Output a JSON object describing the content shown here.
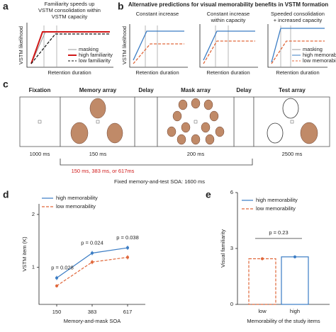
{
  "panel_a": {
    "label": "a",
    "title": [
      "Familiarity speeds up",
      "VSTM consolidation within",
      "VSTM capacity"
    ],
    "ylabel": "VSTM likelihood",
    "xlabel": "Retention duration",
    "legend": [
      "masking",
      "high familiarity",
      "low familiarity"
    ]
  },
  "panel_b": {
    "label": "b",
    "title": "Alternative predictions for visual memorability benefits in VSTM formation",
    "subplots": [
      {
        "title": [
          "Constant increase"
        ]
      },
      {
        "title": [
          "Constant increase",
          "within capacity"
        ]
      },
      {
        "title": [
          "Speeded consolidation",
          "+ increased capacity"
        ]
      }
    ],
    "ylabel": "VSTM likelihood",
    "xlabel": "Retention duration",
    "legend": [
      "masking",
      "high memorability",
      "low memorability"
    ]
  },
  "panel_c": {
    "label": "c",
    "stages": [
      "Fixation",
      "Memory array",
      "Delay",
      "Mask array",
      "Delay",
      "Test array"
    ],
    "durations": [
      "1000 ms",
      "150 ms",
      "200 ms",
      "2500 ms"
    ],
    "soa": "150 ms, 383 ms, or 617ms",
    "fixed": "Fixed memory-and-test SOA: 1600 ms"
  },
  "chart_data": [
    {
      "label": "d",
      "type": "line",
      "categories": [
        "150",
        "383",
        "617"
      ],
      "xlabel": "Memory-and-mask SOA",
      "ylabel": "VSTM item (K)",
      "ylim": [
        0.3,
        2.2
      ],
      "yticks": [
        1,
        2
      ],
      "series": [
        {
          "name": "high memorability",
          "color": "#3a7cc4",
          "line_style": "solid",
          "values": [
            0.8,
            1.27,
            1.37
          ],
          "errors": [
            0.04,
            0.04,
            0.04
          ]
        },
        {
          "name": "low memorability",
          "color": "#e0673a",
          "line_style": "dashed",
          "values": [
            0.65,
            1.1,
            1.19
          ],
          "errors": [
            0.03,
            0.04,
            0.04
          ]
        }
      ],
      "annotations": [
        "p = 0.028",
        "p = 0.024",
        "p = 0.038"
      ]
    },
    {
      "label": "e",
      "type": "bar",
      "categories": [
        "low",
        "high"
      ],
      "values": [
        2.45,
        2.55
      ],
      "errors": [
        0.08,
        0.08
      ],
      "colors": [
        "#e0673a",
        "#3a7cc4"
      ],
      "line_styles": [
        "dashed",
        "solid"
      ],
      "legend": [
        {
          "name": "high memorability",
          "color": "#3a7cc4",
          "line_style": "solid"
        },
        {
          "name": "low memorability",
          "color": "#e0673a",
          "line_style": "dashed"
        }
      ],
      "ylim": [
        0,
        6
      ],
      "yticks": [
        0,
        3,
        6
      ],
      "xlabel": "Memorability of the study items",
      "ylabel": "Visual familiarity",
      "annotation": "p = 0.23"
    }
  ]
}
